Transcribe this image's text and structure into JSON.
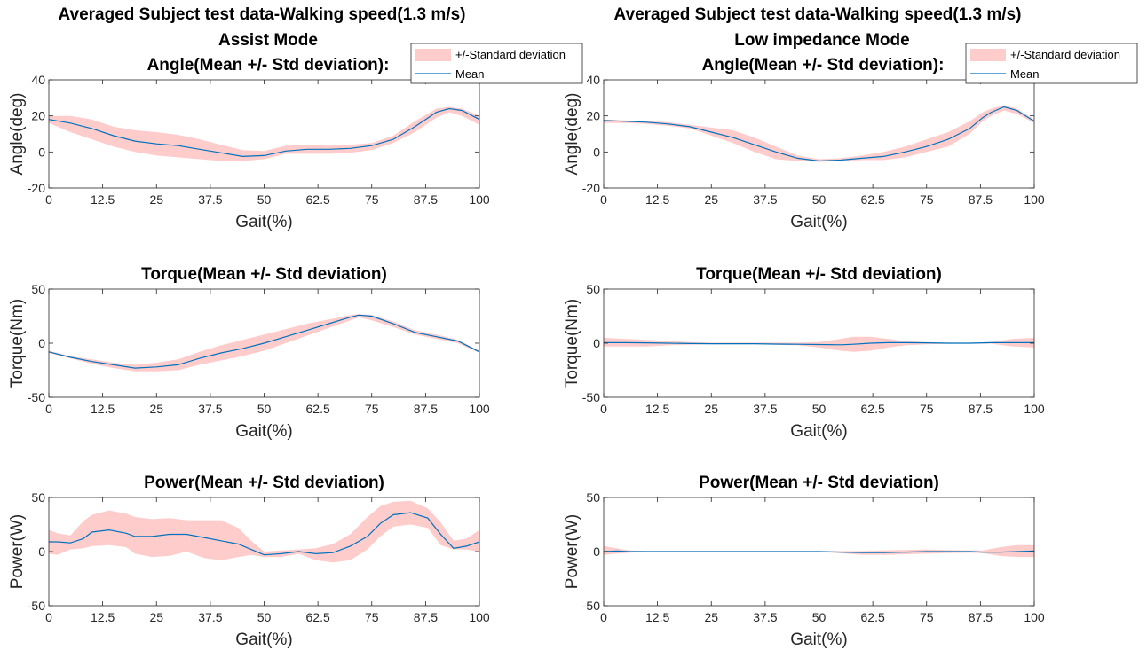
{
  "figure": {
    "left_title_line1": "Averaged Subject test data-Walking speed(1.3 m/s)",
    "left_title_line2": "Assist Mode",
    "right_title_line1": "Averaged Subject test data-Walking speed(1.3 m/s)",
    "right_title_line2": "Low impedance Mode"
  },
  "legend": {
    "band_label": "+/-Standard deviation",
    "mean_label": "Mean"
  },
  "colors": {
    "mean": "#0072BD",
    "band": "#FFCCCC"
  },
  "chart_data": [
    {
      "id": "assist-angle",
      "type": "area",
      "column": 0,
      "row": 0,
      "title": "Angle(Mean +/- Std deviation):",
      "xlabel": "Gait(%)",
      "ylabel": "Angle(deg)",
      "xlim": [
        0,
        100
      ],
      "ylim": [
        -20,
        40
      ],
      "xticks": [
        0,
        12.5,
        25,
        37.5,
        50,
        62.5,
        75,
        87.5,
        100
      ],
      "xtick_labels": [
        "0",
        "12.5",
        "25",
        "37.5",
        "50",
        "62.5",
        "75",
        "87.5",
        "100"
      ],
      "yticks": [
        -20,
        0,
        20,
        40
      ],
      "ytick_labels": [
        "-20",
        "0",
        "20",
        "40"
      ],
      "x": [
        0,
        5,
        10,
        15,
        20,
        25,
        30,
        35,
        40,
        45,
        50,
        55,
        60,
        65,
        70,
        75,
        80,
        85,
        90,
        93,
        96,
        100
      ],
      "mean": [
        18,
        16,
        13,
        9,
        6,
        4.5,
        3.5,
        1.5,
        -0.5,
        -2.5,
        -2,
        0.5,
        1.5,
        1.5,
        2,
        3.5,
        7,
        14,
        22,
        24,
        23,
        18
      ],
      "upper": [
        20,
        20,
        18,
        14,
        12,
        11,
        9.5,
        7,
        4,
        1,
        0.5,
        3.5,
        4,
        3.5,
        4,
        5,
        9,
        17,
        24,
        25,
        24,
        20
      ],
      "lower": [
        16,
        11,
        7,
        3,
        0,
        -2,
        -3,
        -4,
        -5,
        -5,
        -4,
        -1,
        -1,
        -1,
        -0.5,
        1,
        5,
        11,
        19,
        22,
        20,
        15
      ],
      "legend": true
    },
    {
      "id": "assist-torque",
      "type": "area",
      "column": 0,
      "row": 1,
      "title": "Torque(Mean +/- Std deviation)",
      "xlabel": "Gait(%)",
      "ylabel": "Torque(Nm)",
      "xlim": [
        0,
        100
      ],
      "ylim": [
        -50,
        50
      ],
      "xticks": [
        0,
        12.5,
        25,
        37.5,
        50,
        62.5,
        75,
        87.5,
        100
      ],
      "xtick_labels": [
        "0",
        "12.5",
        "25",
        "37.5",
        "50",
        "62.5",
        "75",
        "87.5",
        "100"
      ],
      "yticks": [
        -50,
        0,
        50
      ],
      "ytick_labels": [
        "-50",
        "0",
        "50"
      ],
      "x": [
        0,
        5,
        10,
        15,
        20,
        25,
        30,
        35,
        40,
        45,
        50,
        55,
        60,
        65,
        70,
        72,
        75,
        80,
        85,
        90,
        95,
        100
      ],
      "mean": [
        -8,
        -13,
        -17,
        -20,
        -23,
        -22,
        -20,
        -14,
        -9,
        -5,
        0,
        6,
        12,
        18,
        24,
        26,
        25,
        18,
        10,
        6,
        2,
        -8
      ],
      "upper": [
        -7,
        -12,
        -15,
        -18,
        -20,
        -18,
        -15,
        -8,
        -2,
        3,
        8,
        13,
        18,
        22,
        26,
        27,
        26,
        20,
        12,
        8,
        3,
        -7
      ],
      "lower": [
        -9,
        -14,
        -19,
        -23,
        -26,
        -26,
        -25,
        -20,
        -16,
        -12,
        -7,
        0,
        7,
        14,
        21,
        24,
        21,
        15,
        8,
        4,
        0,
        -9
      ],
      "legend": false
    },
    {
      "id": "assist-power",
      "type": "area",
      "column": 0,
      "row": 2,
      "title": "Power(Mean +/- Std deviation)",
      "xlabel": "Gait(%)",
      "ylabel": "Power(W)",
      "xlim": [
        0,
        100
      ],
      "ylim": [
        -50,
        50
      ],
      "xticks": [
        0,
        12.5,
        25,
        37.5,
        50,
        62.5,
        75,
        87.5,
        100
      ],
      "xtick_labels": [
        "0",
        "12.5",
        "25",
        "37.5",
        "50",
        "62.5",
        "75",
        "87.5",
        "100"
      ],
      "yticks": [
        -50,
        0,
        50
      ],
      "ytick_labels": [
        "-50",
        "0",
        "50"
      ],
      "x": [
        0,
        2,
        5,
        8,
        10,
        14,
        18,
        20,
        24,
        28,
        32,
        36,
        40,
        44,
        47,
        50,
        54,
        58,
        62,
        66,
        70,
        74,
        77,
        80,
        84,
        88,
        91,
        94,
        97,
        100
      ],
      "mean": [
        9,
        9,
        8,
        12,
        18,
        20,
        17,
        14,
        14,
        16,
        16,
        13,
        10,
        7,
        2,
        -3,
        -2,
        0,
        -2,
        -1,
        5,
        14,
        26,
        34,
        36,
        31,
        16,
        3,
        5,
        9
      ],
      "upper": [
        20,
        17,
        15,
        28,
        34,
        38,
        35,
        32,
        30,
        31,
        29,
        29,
        29,
        22,
        10,
        0,
        1,
        2,
        3,
        7,
        16,
        32,
        42,
        46,
        47,
        40,
        27,
        10,
        12,
        20
      ],
      "lower": [
        -2,
        -3,
        2,
        3,
        5,
        6,
        4,
        -2,
        -5,
        -4,
        0,
        -6,
        -8,
        -5,
        -3,
        -5,
        -5,
        -2,
        -8,
        -10,
        -8,
        2,
        14,
        23,
        25,
        22,
        6,
        2,
        2,
        0
      ],
      "legend": false
    },
    {
      "id": "low-angle",
      "type": "area",
      "column": 1,
      "row": 0,
      "title": "Angle(Mean +/- Std deviation):",
      "xlabel": "Gait(%)",
      "ylabel": "Angle(deg)",
      "xlim": [
        0,
        100
      ],
      "ylim": [
        -20,
        40
      ],
      "xticks": [
        0,
        12.5,
        25,
        37.5,
        50,
        62.5,
        75,
        87.5,
        100
      ],
      "xtick_labels": [
        "0",
        "12.5",
        "25",
        "37.5",
        "50",
        "62.5",
        "75",
        "87.5",
        "100"
      ],
      "yticks": [
        -20,
        0,
        20,
        40
      ],
      "ytick_labels": [
        "-20",
        "0",
        "20",
        "40"
      ],
      "x": [
        0,
        5,
        10,
        15,
        20,
        25,
        30,
        35,
        40,
        45,
        50,
        55,
        60,
        65,
        70,
        75,
        80,
        85,
        88,
        90,
        93,
        96,
        100
      ],
      "mean": [
        17.5,
        17,
        16.5,
        15.5,
        14,
        11,
        8,
        4,
        0,
        -3.5,
        -5,
        -4.5,
        -3.5,
        -2.5,
        0,
        3,
        7,
        13,
        19,
        22,
        25,
        23,
        17
      ],
      "upper": [
        18,
        17.5,
        17,
        16.5,
        15,
        13.5,
        12,
        8,
        3,
        -2,
        -4,
        -3.5,
        -2,
        0,
        3,
        7,
        11,
        17,
        22,
        24,
        26,
        24,
        18
      ],
      "lower": [
        16,
        16,
        15.5,
        14.5,
        13,
        9,
        5,
        0,
        -4,
        -5,
        -5.5,
        -5,
        -4.5,
        -4.5,
        -3,
        0,
        3,
        10,
        17,
        20,
        23,
        21,
        16
      ],
      "legend": true
    },
    {
      "id": "low-torque",
      "type": "area",
      "column": 1,
      "row": 1,
      "title": "Torque(Mean +/- Std deviation)",
      "xlabel": "Gait(%)",
      "ylabel": "Torque(Nm)",
      "xlim": [
        0,
        100
      ],
      "ylim": [
        -50,
        50
      ],
      "xticks": [
        0,
        12.5,
        25,
        37.5,
        50,
        62.5,
        75,
        87.5,
        100
      ],
      "xtick_labels": [
        "0",
        "12.5",
        "25",
        "37.5",
        "50",
        "62.5",
        "75",
        "87.5",
        "100"
      ],
      "yticks": [
        -50,
        0,
        50
      ],
      "ytick_labels": [
        "-50",
        "0",
        "50"
      ],
      "x": [
        0,
        5,
        10,
        15,
        20,
        25,
        30,
        35,
        40,
        45,
        50,
        55,
        58,
        62,
        66,
        70,
        75,
        80,
        85,
        90,
        95,
        100
      ],
      "mean": [
        0.5,
        0.5,
        0.3,
        0,
        -0.3,
        -0.5,
        -0.5,
        -0.5,
        -0.8,
        -1,
        -1.2,
        -1.5,
        -1,
        0,
        0.5,
        0.5,
        0.3,
        0,
        0,
        0.5,
        0.5,
        0.5
      ],
      "upper": [
        5,
        4,
        3,
        2,
        1,
        0.5,
        0.5,
        0.5,
        0.5,
        0.5,
        1,
        4,
        6,
        6,
        4,
        2,
        1,
        0.5,
        0.5,
        1,
        4,
        5
      ],
      "lower": [
        -3,
        -3,
        -3,
        -2,
        -1.5,
        -1,
        -1,
        -1,
        -1.5,
        -2,
        -4,
        -7,
        -8,
        -7,
        -4,
        -2,
        -1,
        -0.5,
        -0.5,
        -0.5,
        -3,
        -4
      ],
      "legend": false
    },
    {
      "id": "low-power",
      "type": "area",
      "column": 1,
      "row": 2,
      "title": "Power(Mean +/- Std deviation)",
      "xlabel": "Gait(%)",
      "ylabel": "Power(W)",
      "xlim": [
        0,
        100
      ],
      "ylim": [
        -50,
        50
      ],
      "xticks": [
        0,
        12.5,
        25,
        37.5,
        50,
        62.5,
        75,
        87.5,
        100
      ],
      "xtick_labels": [
        "0",
        "12.5",
        "25",
        "37.5",
        "50",
        "62.5",
        "75",
        "87.5",
        "100"
      ],
      "yticks": [
        -50,
        0,
        50
      ],
      "ytick_labels": [
        "-50",
        "0",
        "50"
      ],
      "x": [
        0,
        3,
        6,
        10,
        20,
        30,
        40,
        50,
        55,
        60,
        65,
        70,
        75,
        80,
        85,
        88,
        92,
        96,
        100
      ],
      "mean": [
        0,
        0.5,
        0,
        0,
        0,
        0,
        0,
        0,
        -0.5,
        -1,
        -1,
        -0.5,
        0,
        0,
        0,
        -0.5,
        -0.5,
        0,
        0.5
      ],
      "upper": [
        5,
        3,
        1,
        0.5,
        0.5,
        0.5,
        0.5,
        0.5,
        0.5,
        0.5,
        1,
        1.5,
        2,
        1.5,
        1,
        1,
        4,
        6,
        6
      ],
      "lower": [
        -3,
        -2,
        -1,
        -0.5,
        -0.5,
        -0.5,
        -0.5,
        -0.5,
        -1.5,
        -3,
        -3,
        -2.5,
        -2,
        -1.5,
        -1,
        -1.5,
        -4,
        -5,
        -5
      ],
      "legend": false
    }
  ]
}
